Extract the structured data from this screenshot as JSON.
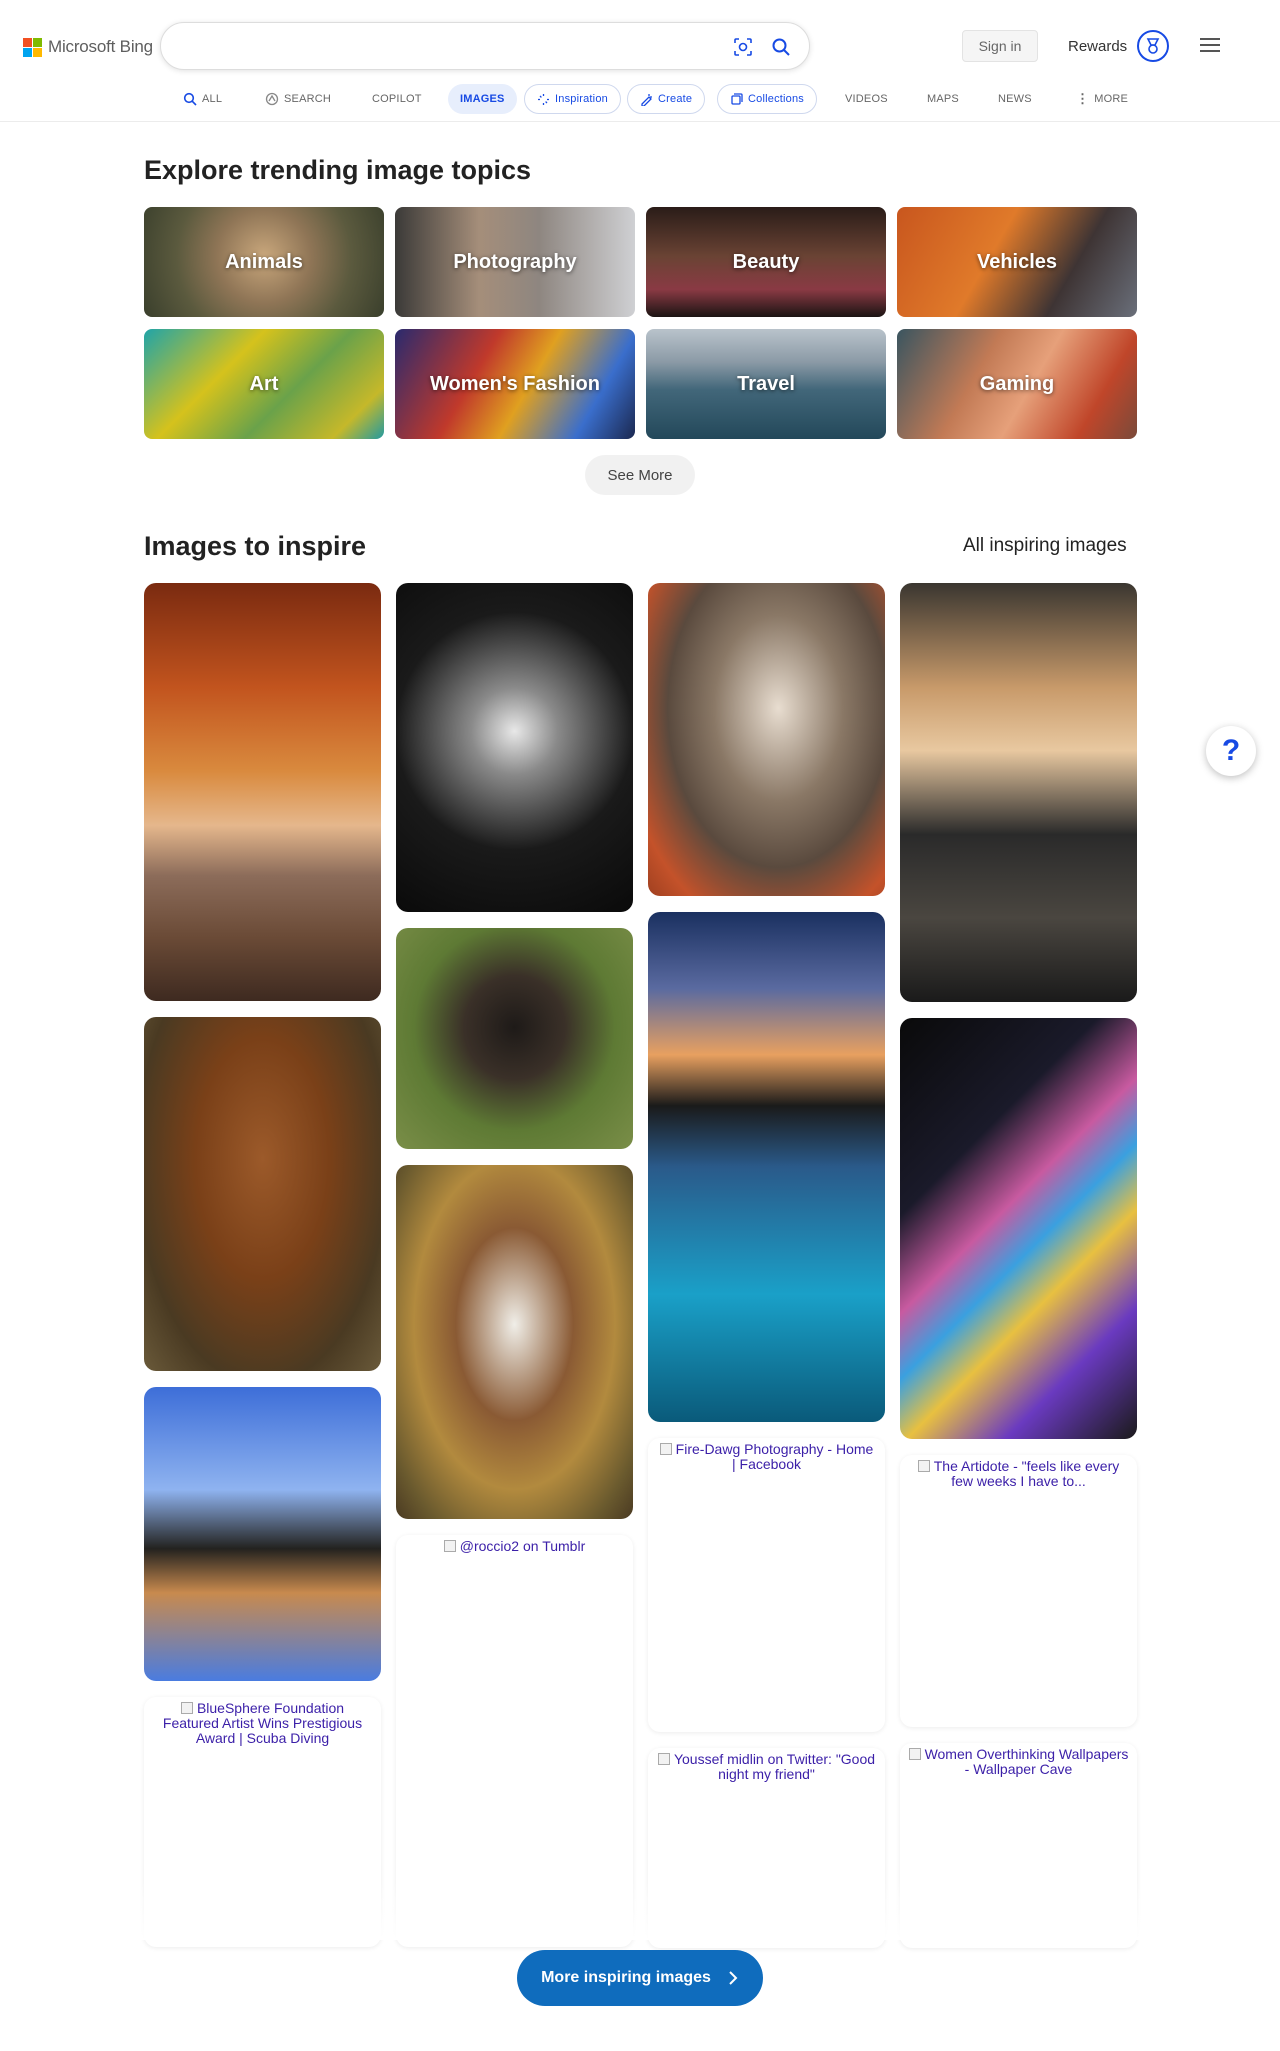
{
  "brand": {
    "name": "Microsoft Bing",
    "colors": [
      "#f25022",
      "#7fba00",
      "#00a4ef",
      "#ffb900"
    ]
  },
  "search": {
    "value": "",
    "placeholder": ""
  },
  "account": {
    "sign_in_label": "Sign in",
    "rewards_label": "Rewards"
  },
  "tabs": {
    "all": "ALL",
    "search": "SEARCH",
    "copilot": "COPILOT",
    "images": "IMAGES",
    "inspiration": "Inspiration",
    "create": "Create",
    "collections": "Collections",
    "videos": "VIDEOS",
    "maps": "MAPS",
    "news": "NEWS",
    "more": "MORE"
  },
  "trending": {
    "heading": "Explore trending image topics",
    "topics": [
      "Animals",
      "Photography",
      "Beauty",
      "Vehicles",
      "Art",
      "Women's Fashion",
      "Travel",
      "Gaming"
    ],
    "see_more_label": "See More"
  },
  "inspire": {
    "heading": "Images to inspire",
    "all_link": "All inspiring images",
    "broken_captions": [
      "@roccio2 on Tumblr",
      "Fire-Dawg Photography - Home | Facebook",
      "The Artidote - \"feels like every few weeks I have to...",
      "BlueSphere Foundation Featured Artist Wins Prestigious Award | Scuba Diving",
      "Youssef midlin on Twitter: \"Good night my friend\"",
      "Women Overthinking Wallpapers - Wallpaper Cave"
    ],
    "more_button_label": "More inspiring images"
  },
  "help_label": "?"
}
